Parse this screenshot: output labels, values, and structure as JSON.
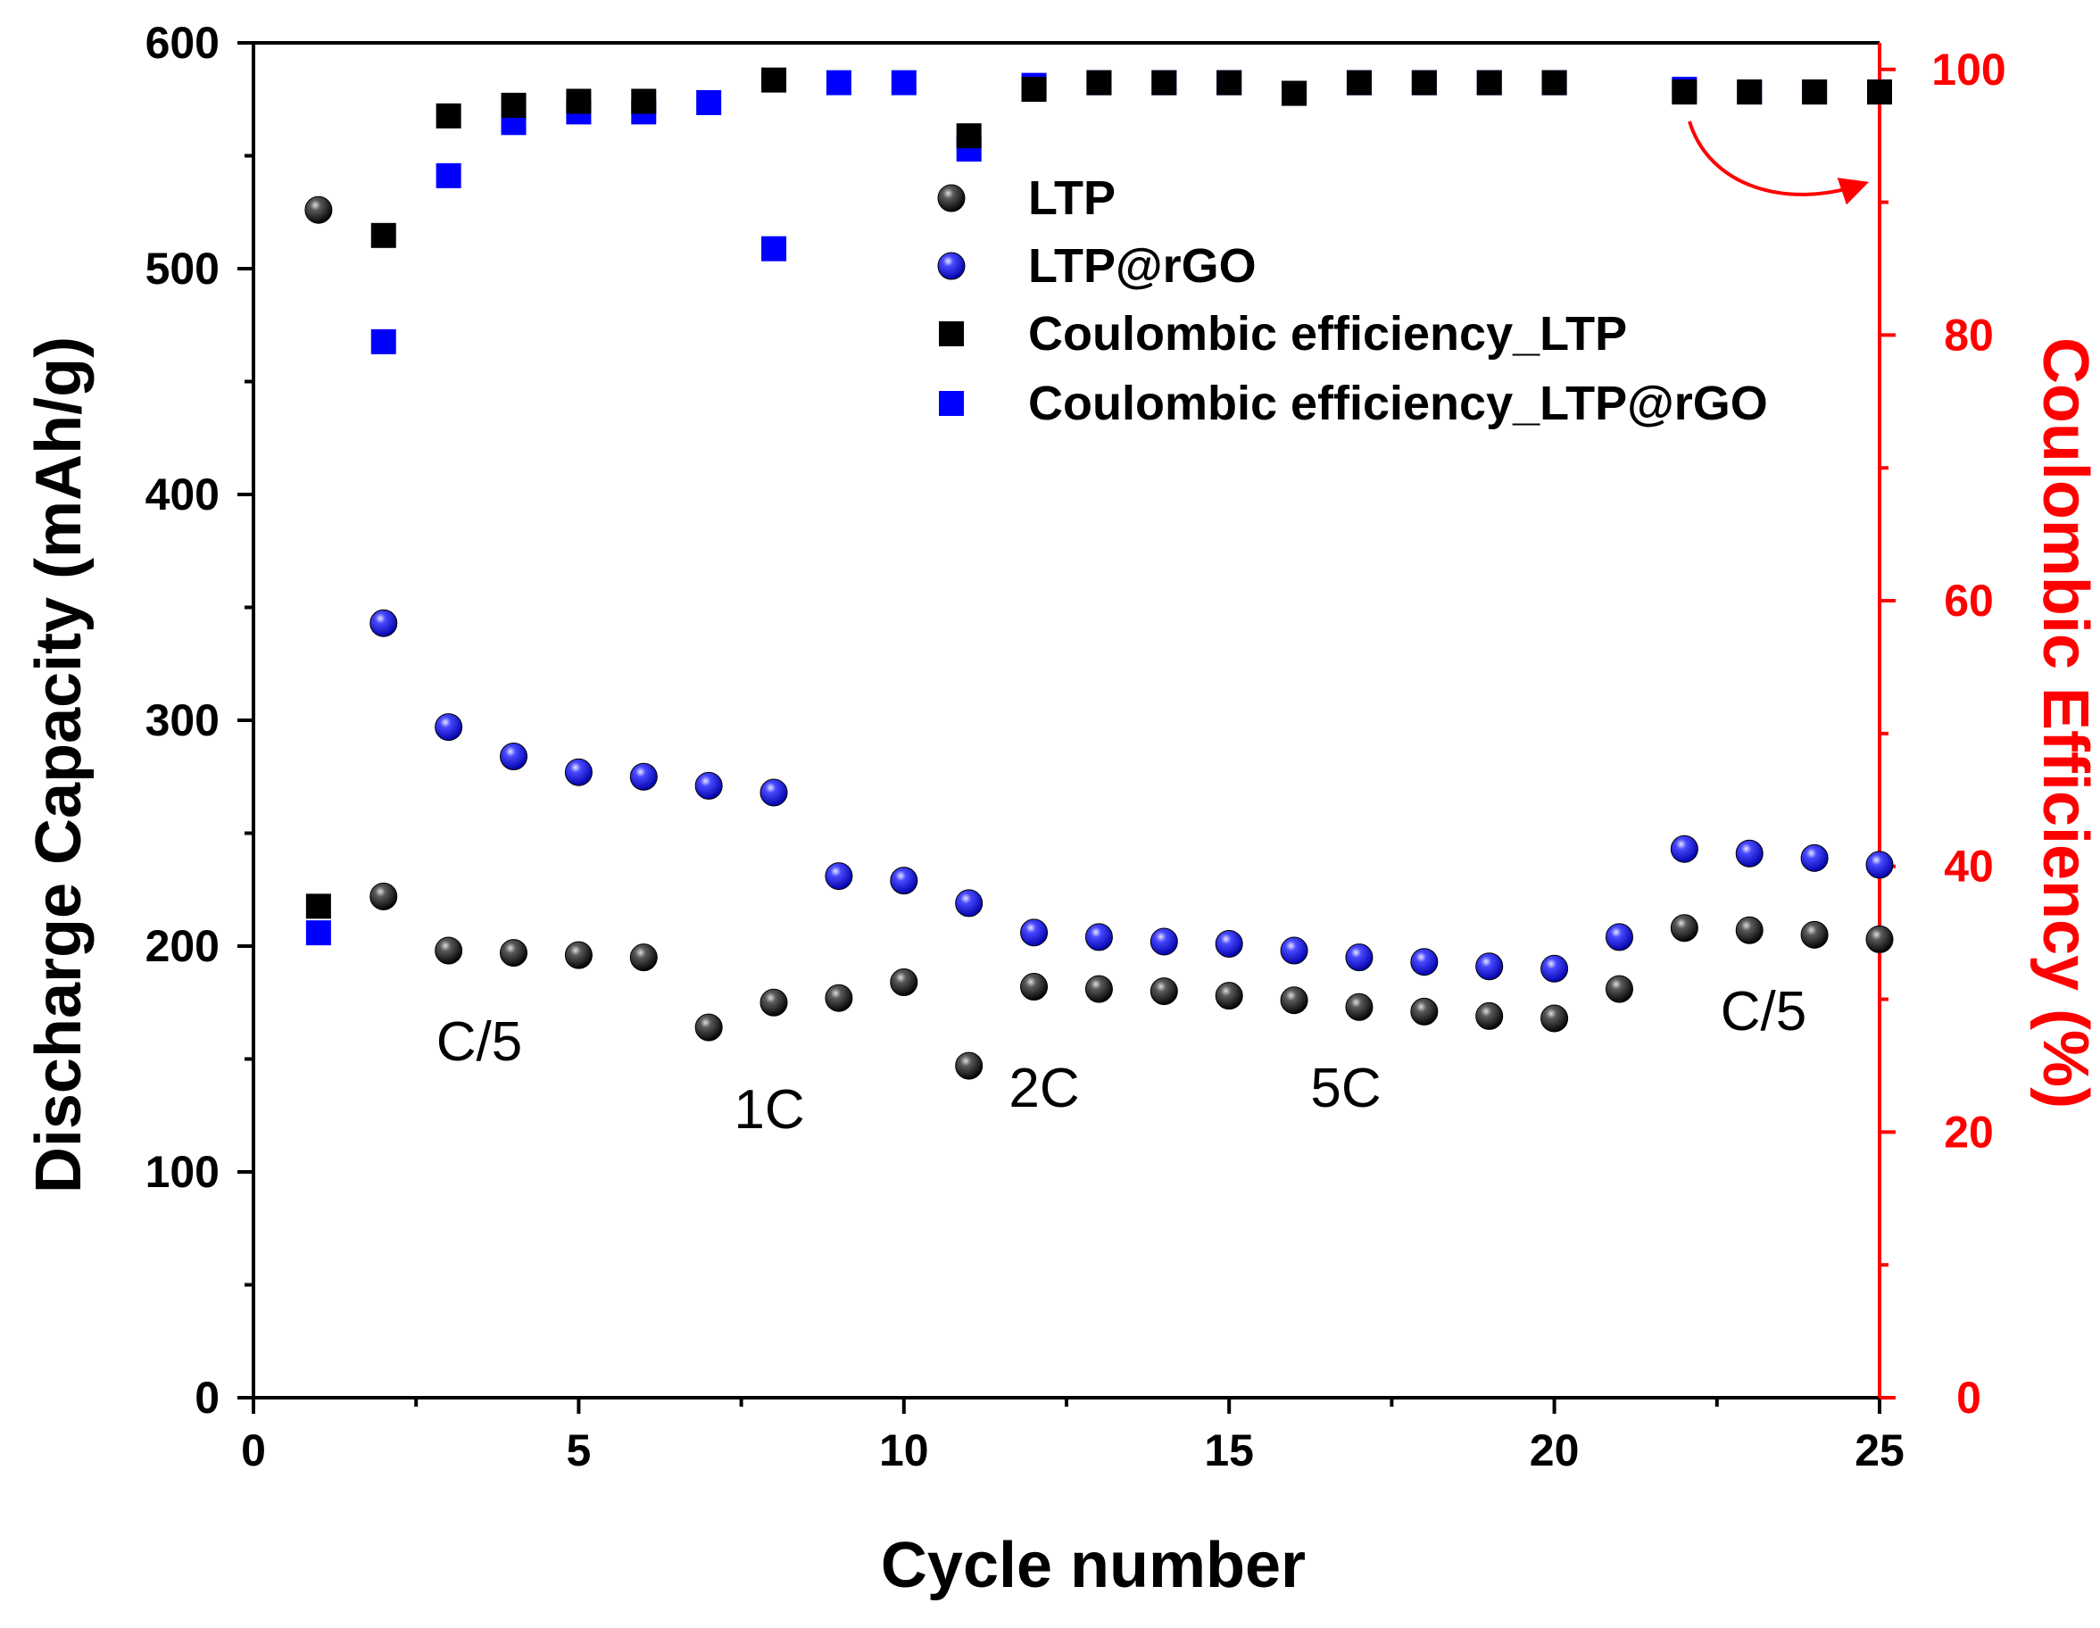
{
  "chart_data": {
    "type": "scatter",
    "x_axis": {
      "label": "Cycle number",
      "range": [
        0,
        25
      ],
      "ticks": [
        "0",
        "5",
        "10",
        "15",
        "20",
        "25"
      ]
    },
    "y_axis_left": {
      "label": "Discharge Capacity (mAh/g)",
      "range": [
        0,
        600
      ],
      "ticks": [
        "0",
        "100",
        "200",
        "300",
        "400",
        "500",
        "600"
      ]
    },
    "y_axis_right": {
      "label": "Coulombic Efficiency (%)",
      "range": [
        0,
        102
      ],
      "ticks": [
        "0",
        "20",
        "40",
        "60",
        "80",
        "100"
      ],
      "color": "#ff0000"
    },
    "series": [
      {
        "name": "LTP",
        "axis": "left",
        "marker": "sphere",
        "color": "#000000",
        "x": [
          1,
          2,
          3,
          4,
          5,
          6,
          7,
          8,
          9,
          10,
          11,
          12,
          13,
          14,
          15,
          16,
          17,
          18,
          19,
          20,
          21,
          22,
          23,
          24,
          25
        ],
        "values": [
          526,
          222,
          198,
          197,
          196,
          195,
          164,
          175,
          177,
          184,
          147,
          182,
          181,
          180,
          178,
          176,
          173,
          171,
          169,
          168,
          181,
          208,
          207,
          205,
          203
        ]
      },
      {
        "name": "LTP@rGO",
        "axis": "left",
        "marker": "sphere",
        "color": "#1f1fe0",
        "x": [
          1,
          2,
          3,
          4,
          5,
          6,
          7,
          8,
          9,
          10,
          11,
          12,
          13,
          14,
          15,
          16,
          17,
          18,
          19,
          20,
          21,
          22,
          23,
          24,
          25
        ],
        "values": [
          null,
          343,
          297,
          284,
          277,
          275,
          271,
          268,
          231,
          229,
          219,
          206,
          204,
          202,
          201,
          198,
          195,
          193,
          191,
          190,
          204,
          243,
          241,
          239,
          236
        ]
      },
      {
        "name": "Coulombic efficiency_LTP",
        "axis": "right",
        "marker": "square",
        "color": "#000000",
        "x": [
          1,
          2,
          3,
          4,
          5,
          6,
          8,
          11,
          12,
          13,
          14,
          15,
          16,
          17,
          18,
          19,
          20,
          22,
          23,
          24,
          25
        ],
        "values": [
          37,
          87.5,
          96.5,
          97.3,
          97.6,
          97.6,
          99.2,
          95,
          98.5,
          99,
          99,
          99,
          98.2,
          99,
          99,
          99,
          99,
          98.3,
          98.3,
          98.3,
          98.3
        ]
      },
      {
        "name": "Coulombic efficiency_LTP@rGO",
        "axis": "right",
        "marker": "square",
        "color": "#0000ff",
        "x": [
          1,
          2,
          3,
          4,
          5,
          6,
          7,
          8,
          9,
          10,
          11,
          12,
          13,
          14,
          15,
          16,
          17,
          18,
          19,
          20,
          22,
          23,
          24,
          25
        ],
        "values": [
          35,
          79.5,
          92,
          96,
          96.8,
          96.8,
          97.5,
          86.5,
          99,
          99,
          94,
          98.8,
          99,
          99,
          99,
          98.2,
          99,
          99,
          99,
          99,
          98.5,
          98.3,
          98.3,
          98.3
        ]
      }
    ],
    "annotations": [
      "C/5",
      "1C",
      "2C",
      "5C",
      "C/5"
    ],
    "legend_position": "top-right"
  }
}
